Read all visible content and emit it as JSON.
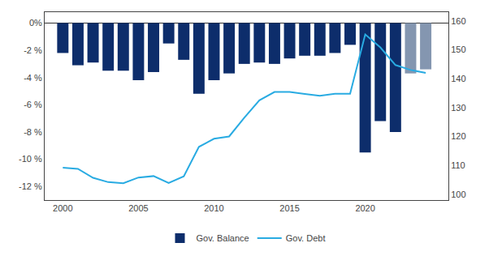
{
  "chart_data": {
    "type": "bar",
    "x": [
      2000,
      2001,
      2002,
      2003,
      2004,
      2005,
      2006,
      2007,
      2008,
      2009,
      2010,
      2011,
      2012,
      2013,
      2014,
      2015,
      2016,
      2017,
      2018,
      2019,
      2020,
      2021,
      2022,
      2023,
      2024
    ],
    "series": [
      {
        "name": "Gov. Balance",
        "type": "bar",
        "colors": [
          "#0d2d6b",
          "#0d2d6b",
          "#0d2d6b",
          "#0d2d6b",
          "#0d2d6b",
          "#0d2d6b",
          "#0d2d6b",
          "#0d2d6b",
          "#0d2d6b",
          "#0d2d6b",
          "#0d2d6b",
          "#0d2d6b",
          "#0d2d6b",
          "#0d2d6b",
          "#0d2d6b",
          "#0d2d6b",
          "#0d2d6b",
          "#0d2d6b",
          "#0d2d6b",
          "#0d2d6b",
          "#0d2d6b",
          "#0d2d6b",
          "#0d2d6b",
          "#8496b0",
          "#8496b0"
        ],
        "values": [
          -2.2,
          -3.1,
          -2.9,
          -3.5,
          -3.5,
          -4.2,
          -3.6,
          -1.5,
          -2.7,
          -5.2,
          -4.2,
          -3.7,
          -3.0,
          -2.9,
          -3.0,
          -2.6,
          -2.4,
          -2.4,
          -2.2,
          -1.6,
          -9.5,
          -7.2,
          -8.0,
          -3.7,
          -3.4
        ]
      },
      {
        "name": "Gov. Debt",
        "type": "line",
        "color": "#29abe2",
        "axis": "y2",
        "values": [
          109.2,
          108.8,
          105.7,
          104.2,
          103.8,
          105.8,
          106.3,
          103.9,
          106.2,
          116.4,
          119.2,
          120.0,
          126.5,
          132.5,
          135.4,
          135.4,
          134.7,
          134.1,
          134.8,
          134.8,
          155.3,
          150.8,
          144.7,
          143.0,
          142.0
        ]
      }
    ],
    "xlim": [
      1998.8,
      2025.5
    ],
    "xticks": [
      2000,
      2005,
      2010,
      2015,
      2020
    ],
    "ylim": [
      -13.0,
      0.8
    ],
    "yticks": [
      {
        "value": 0,
        "label": "0%"
      },
      {
        "value": -2,
        "label": "-2 %"
      },
      {
        "value": -4,
        "label": "-4 %"
      },
      {
        "value": -6,
        "label": "-6 %"
      },
      {
        "value": -8,
        "label": "-8 %"
      },
      {
        "value": -10,
        "label": "-10 %"
      },
      {
        "value": -12,
        "label": "-12 %"
      }
    ],
    "y2lim": [
      98,
      163
    ],
    "y2ticks": [
      100,
      110,
      120,
      130,
      140,
      150,
      160
    ],
    "grid": false,
    "legend": "bottom"
  }
}
